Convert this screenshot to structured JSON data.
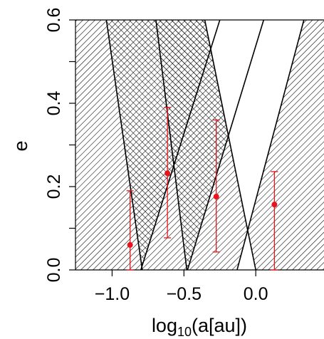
{
  "chart_data": {
    "type": "scatter",
    "title": "",
    "xlabel": "log",
    "xlabel_sub": "10",
    "xlabel_rest": "(a[au])",
    "ylabel": "e",
    "xlim": [
      -1.255,
      0.475
    ],
    "ylim": [
      0.0,
      0.6
    ],
    "x_ticks": [
      -1.0,
      -0.5,
      0.0
    ],
    "x_tick_labels": [
      "−1.0",
      "−0.5",
      "0.0"
    ],
    "y_ticks": [
      0.0,
      0.2,
      0.4,
      0.6
    ],
    "y_tick_labels": [
      "0.0",
      "0.2",
      "0.4",
      "0.6"
    ],
    "grid": false,
    "legend": "none",
    "colors": {
      "points": "#e8141c",
      "hatch": "#000000",
      "background": "#ffffff"
    },
    "series": [
      {
        "marker": "filled-circle-with-error-bars",
        "points": [
          {
            "x": -0.875,
            "y": 0.06,
            "y_low": 0.0,
            "y_high": 0.19
          },
          {
            "x": -0.615,
            "y": 0.232,
            "y_low": 0.077,
            "y_high": 0.39
          },
          {
            "x": -0.275,
            "y": 0.176,
            "y_low": 0.043,
            "y_high": 0.36
          },
          {
            "x": 0.13,
            "y": 0.157,
            "y_low": 0.0,
            "y_high": 0.236
          }
        ]
      }
    ],
    "regions": {
      "boundaries": [
        {
          "x_at_e0": -0.79,
          "x_at_e06": -1.04
        },
        {
          "x_at_e0": -0.8,
          "x_at_e06": -0.25
        },
        {
          "x_at_e0": -0.48,
          "x_at_e06": -0.695
        },
        {
          "x_at_e0": -0.475,
          "x_at_e06": 0.055
        },
        {
          "x_at_e0": 0.0,
          "x_at_e06": -0.355
        },
        {
          "x_at_e0": -0.13,
          "x_at_e06": 0.335
        }
      ],
      "hatched_all": true,
      "cross_hatched": [
        {
          "boundaries": [
            0,
            1
          ]
        },
        {
          "boundaries": [
            2,
            3
          ]
        },
        {
          "boundaries": [
            4,
            5
          ]
        }
      ],
      "unhatched": [
        {
          "boundaries": [
            4,
            5
          ]
        }
      ]
    }
  }
}
